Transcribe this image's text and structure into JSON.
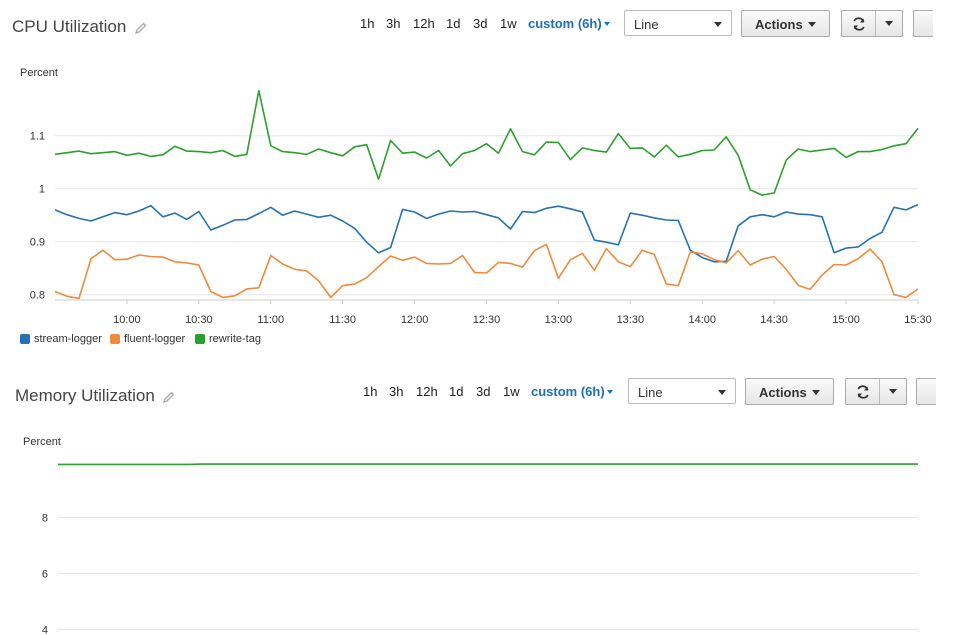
{
  "colors": {
    "accent": "#1d6fb8",
    "grid": "#e6e6e6",
    "axis": "#cccccc"
  },
  "toolbar": {
    "ranges": [
      "1h",
      "3h",
      "12h",
      "1d",
      "3d",
      "1w"
    ],
    "custom_label": "custom (6h)",
    "select_value": "Line",
    "actions_label": "Actions"
  },
  "icons": {
    "edit": "pencil-icon",
    "refresh": "refresh-icon",
    "dropdown": "chevron-down-icon"
  },
  "chart_data": [
    {
      "type": "line",
      "title": "CPU Utilization",
      "ylabel": "Percent",
      "ylim": [
        0.79,
        1.19
      ],
      "yticks": [
        0.8,
        0.9,
        1,
        1.1
      ],
      "ytick_labels": [
        "0.8",
        "0.9",
        "1",
        "1.1"
      ],
      "xlim": [
        0,
        72
      ],
      "xticks": [
        6,
        12,
        18,
        24,
        30,
        36,
        42,
        48,
        54,
        60,
        66,
        72
      ],
      "xtick_labels": [
        "10:00",
        "10:30",
        "11:00",
        "11:30",
        "12:00",
        "12:30",
        "13:00",
        "13:30",
        "14:00",
        "14:30",
        "15:00",
        "15:30"
      ],
      "grid": true,
      "legend_position": "bottom-left",
      "series": [
        {
          "name": "stream-logger",
          "color": "#2471b5",
          "values": [
            0.96,
            0.951,
            0.944,
            0.939,
            0.947,
            0.955,
            0.951,
            0.958,
            0.968,
            0.947,
            0.954,
            0.942,
            0.957,
            0.922,
            0.931,
            0.941,
            0.942,
            0.953,
            0.965,
            0.95,
            0.958,
            0.952,
            0.946,
            0.95,
            0.939,
            0.925,
            0.899,
            0.879,
            0.889,
            0.961,
            0.956,
            0.944,
            0.952,
            0.958,
            0.956,
            0.957,
            0.951,
            0.945,
            0.924,
            0.957,
            0.955,
            0.963,
            0.967,
            0.962,
            0.956,
            0.903,
            0.899,
            0.894,
            0.954,
            0.95,
            0.945,
            0.941,
            0.94,
            0.884,
            0.87,
            0.862,
            0.863,
            0.93,
            0.947,
            0.951,
            0.947,
            0.956,
            0.952,
            0.951,
            0.947,
            0.879,
            0.888,
            0.89,
            0.906,
            0.918,
            0.965,
            0.96,
            0.97
          ]
        },
        {
          "name": "fluent-logger",
          "color": "#f08a3c",
          "values": [
            0.806,
            0.797,
            0.793,
            0.868,
            0.884,
            0.866,
            0.867,
            0.875,
            0.872,
            0.871,
            0.862,
            0.86,
            0.856,
            0.806,
            0.795,
            0.798,
            0.811,
            0.813,
            0.874,
            0.858,
            0.848,
            0.845,
            0.826,
            0.795,
            0.817,
            0.82,
            0.832,
            0.853,
            0.873,
            0.865,
            0.871,
            0.859,
            0.858,
            0.859,
            0.874,
            0.842,
            0.841,
            0.861,
            0.859,
            0.852,
            0.883,
            0.895,
            0.831,
            0.866,
            0.878,
            0.846,
            0.887,
            0.862,
            0.853,
            0.884,
            0.876,
            0.82,
            0.817,
            0.881,
            0.877,
            0.866,
            0.86,
            0.883,
            0.856,
            0.867,
            0.872,
            0.848,
            0.818,
            0.81,
            0.837,
            0.857,
            0.856,
            0.868,
            0.886,
            0.862,
            0.8,
            0.795,
            0.811
          ]
        },
        {
          "name": "rewrite-tag",
          "color": "#2ca02c",
          "values": [
            1.065,
            1.068,
            1.071,
            1.066,
            1.068,
            1.07,
            1.063,
            1.067,
            1.061,
            1.064,
            1.08,
            1.071,
            1.07,
            1.068,
            1.072,
            1.061,
            1.065,
            1.185,
            1.081,
            1.07,
            1.068,
            1.065,
            1.075,
            1.068,
            1.062,
            1.079,
            1.083,
            1.018,
            1.091,
            1.067,
            1.069,
            1.058,
            1.072,
            1.043,
            1.066,
            1.072,
            1.085,
            1.067,
            1.113,
            1.07,
            1.064,
            1.088,
            1.087,
            1.055,
            1.077,
            1.072,
            1.069,
            1.104,
            1.076,
            1.077,
            1.06,
            1.082,
            1.06,
            1.065,
            1.072,
            1.073,
            1.098,
            1.063,
            0.998,
            0.988,
            0.992,
            1.054,
            1.075,
            1.07,
            1.073,
            1.076,
            1.059,
            1.07,
            1.07,
            1.074,
            1.081,
            1.085,
            1.114
          ]
        }
      ]
    },
    {
      "type": "line",
      "title": "Memory Utilization",
      "ylabel": "Percent",
      "ylim": [
        3.8,
        10.2
      ],
      "yticks": [
        4,
        6,
        8
      ],
      "ytick_labels": [
        "4",
        "6",
        "8"
      ],
      "xlim": [
        0,
        72
      ],
      "grid": true,
      "series": [
        {
          "color": "#2ca02c",
          "values": [
            9.9,
            9.9,
            9.9,
            9.9,
            9.9,
            9.9,
            9.9,
            9.9,
            9.9,
            9.9,
            9.9,
            9.9,
            9.91,
            9.91,
            9.91,
            9.91,
            9.91,
            9.91,
            9.91,
            9.91,
            9.91,
            9.91,
            9.91,
            9.91,
            9.91,
            9.91,
            9.91,
            9.91,
            9.91,
            9.91,
            9.91,
            9.91,
            9.91,
            9.91,
            9.91,
            9.91,
            9.91,
            9.91,
            9.91,
            9.91,
            9.91,
            9.91,
            9.91,
            9.91,
            9.91,
            9.91,
            9.91,
            9.91,
            9.91,
            9.91,
            9.91,
            9.91,
            9.91,
            9.91,
            9.91,
            9.91,
            9.91,
            9.91,
            9.91,
            9.91,
            9.91,
            9.91,
            9.91,
            9.91,
            9.91,
            9.91,
            9.91,
            9.91,
            9.91,
            9.91,
            9.91,
            9.91,
            9.91
          ]
        }
      ]
    }
  ]
}
